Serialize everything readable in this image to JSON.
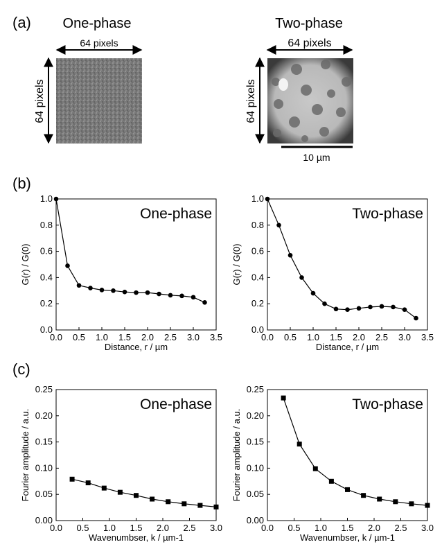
{
  "figure": {
    "panel_a": {
      "label": "(a)",
      "images": [
        {
          "title": "One-phase",
          "width_label": "64 pixels",
          "height_label": "64 pixels",
          "texture": "fine-uniform-gray-noise"
        },
        {
          "title": "Two-phase",
          "width_label": "64 pixels",
          "height_label": "64 pixels",
          "scale_bar": "10 µm",
          "texture": "bright-matrix-with-dark-circular-domains"
        }
      ]
    },
    "panel_b": {
      "label": "(b)"
    },
    "panel_c": {
      "label": "(c)"
    }
  },
  "chart_data": [
    {
      "type": "line",
      "title": "One-phase",
      "xlabel": "Distance, r / µm",
      "ylabel": "G(r) / G(0)",
      "xlim": [
        0.0,
        3.5
      ],
      "ylim": [
        0.0,
        1.0
      ],
      "xticks": [
        "0.0",
        "0.5",
        "1.0",
        "1.5",
        "2.0",
        "2.5",
        "3.0",
        "3.5"
      ],
      "yticks": [
        "0.0",
        "0.2",
        "0.4",
        "0.6",
        "0.8",
        "1.0"
      ],
      "marker": "circle",
      "series": [
        {
          "x": [
            0,
            0.25,
            0.5,
            0.75,
            1.0,
            1.25,
            1.5,
            1.75,
            2.0,
            2.25,
            2.5,
            2.75,
            3.0,
            3.25
          ],
          "y": [
            1.0,
            0.49,
            0.34,
            0.32,
            0.305,
            0.3,
            0.29,
            0.285,
            0.285,
            0.275,
            0.265,
            0.26,
            0.25,
            0.21
          ]
        }
      ]
    },
    {
      "type": "line",
      "title": "Two-phase",
      "xlabel": "Distance, r / µm",
      "ylabel": "G(r) / G(0)",
      "xlim": [
        0.0,
        3.5
      ],
      "ylim": [
        0.0,
        1.0
      ],
      "xticks": [
        "0.0",
        "0.5",
        "1.0",
        "1.5",
        "2.0",
        "2.5",
        "3.0",
        "3.5"
      ],
      "yticks": [
        "0.0",
        "0.2",
        "0.4",
        "0.6",
        "0.8",
        "1.0"
      ],
      "marker": "circle",
      "series": [
        {
          "x": [
            0,
            0.25,
            0.5,
            0.75,
            1.0,
            1.25,
            1.5,
            1.75,
            2.0,
            2.25,
            2.5,
            2.75,
            3.0,
            3.25
          ],
          "y": [
            1.0,
            0.8,
            0.57,
            0.4,
            0.28,
            0.2,
            0.16,
            0.155,
            0.165,
            0.175,
            0.18,
            0.175,
            0.155,
            0.09
          ]
        }
      ]
    },
    {
      "type": "line",
      "title": "One-phase",
      "xlabel": "Wavenumbser, k / µm-1",
      "ylabel": "Fourier amplitude / a.u.",
      "xlim": [
        0.0,
        3.0
      ],
      "ylim": [
        0.0,
        0.25
      ],
      "xticks": [
        "0.0",
        "0.5",
        "1.0",
        "1.5",
        "2.0",
        "2.5",
        "3.0"
      ],
      "yticks": [
        "0.00",
        "0.05",
        "0.10",
        "0.15",
        "0.20",
        "0.25"
      ],
      "marker": "square",
      "series": [
        {
          "x": [
            0.3,
            0.6,
            0.9,
            1.2,
            1.5,
            1.8,
            2.1,
            2.4,
            2.7,
            3.0
          ],
          "y": [
            0.079,
            0.072,
            0.062,
            0.054,
            0.048,
            0.041,
            0.036,
            0.032,
            0.029,
            0.026
          ]
        }
      ]
    },
    {
      "type": "line",
      "title": "Two-phase",
      "xlabel": "Wavenumbser, k / µm-1",
      "ylabel": "Fourier amplitude / a.u.",
      "xlim": [
        0.0,
        3.0
      ],
      "ylim": [
        0.0,
        0.25
      ],
      "xticks": [
        "0.0",
        "0.5",
        "1.0",
        "1.5",
        "2.0",
        "2.5",
        "3.0"
      ],
      "yticks": [
        "0.00",
        "0.05",
        "0.10",
        "0.15",
        "0.20",
        "0.25"
      ],
      "marker": "square",
      "series": [
        {
          "x": [
            0.3,
            0.6,
            0.9,
            1.2,
            1.5,
            1.8,
            2.1,
            2.4,
            2.7,
            3.0
          ],
          "y": [
            0.234,
            0.146,
            0.099,
            0.075,
            0.059,
            0.048,
            0.041,
            0.036,
            0.032,
            0.029
          ]
        }
      ]
    }
  ]
}
